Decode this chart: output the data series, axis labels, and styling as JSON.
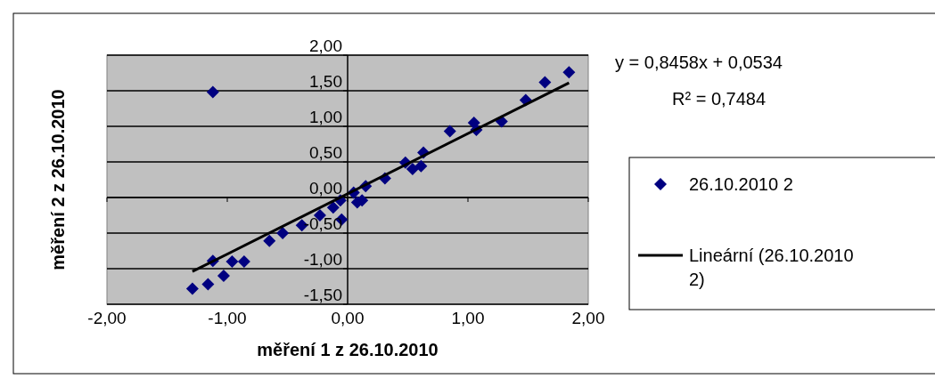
{
  "chart_data": {
    "type": "scatter",
    "xlabel": "měření 1 z 26.10.2010",
    "ylabel": "měření 2 z 26.10.2010",
    "annotations": [
      "y = 0,8458x + 0,0534",
      "R² = 0,7484"
    ],
    "xlim": [
      -2,
      2
    ],
    "ylim": [
      -1.5,
      2
    ],
    "xticks": [
      {
        "value": -2,
        "label": "-2,00"
      },
      {
        "value": -1,
        "label": "-1,00"
      },
      {
        "value": 0,
        "label": "0,00"
      },
      {
        "value": 1,
        "label": "1,00"
      },
      {
        "value": 2,
        "label": "2,00"
      }
    ],
    "yticks": [
      {
        "value": -1.5,
        "label": "-1,50"
      },
      {
        "value": -1,
        "label": "-1,00"
      },
      {
        "value": -0.5,
        "label": "-0,50"
      },
      {
        "value": 0,
        "label": "0,00"
      },
      {
        "value": 0.5,
        "label": "0,50"
      },
      {
        "value": 1,
        "label": "1,00"
      },
      {
        "value": 1.5,
        "label": "1,50"
      },
      {
        "value": 2,
        "label": "2,00"
      }
    ],
    "grid": "y",
    "legend": "right",
    "marker": "diamond",
    "series": [
      {
        "name": "26.10.2010 2",
        "color": "#000080",
        "x": [
          -1.12,
          -1.29,
          -1.16,
          -1.12,
          -1.03,
          -0.96,
          -0.86,
          -0.65,
          -0.54,
          -0.38,
          -0.23,
          -0.12,
          -0.05,
          -0.06,
          0.05,
          0.08,
          0.12,
          0.15,
          0.31,
          0.48,
          0.54,
          0.61,
          0.63,
          0.85,
          1.05,
          1.07,
          1.28,
          1.48,
          1.64,
          1.84
        ],
        "values": [
          1.48,
          -1.28,
          -1.22,
          -0.89,
          -1.1,
          -0.9,
          -0.9,
          -0.61,
          -0.5,
          -0.39,
          -0.25,
          -0.14,
          -0.31,
          -0.04,
          0.07,
          -0.07,
          -0.04,
          0.16,
          0.27,
          0.49,
          0.4,
          0.44,
          0.63,
          0.93,
          1.05,
          0.95,
          1.07,
          1.37,
          1.62,
          1.76
        ]
      },
      {
        "name": "Lineární (26.10.2010 2)",
        "type": "line",
        "color": "#000000",
        "line_style": "solid",
        "marker": "none",
        "x": [
          -1.29,
          1.84
        ],
        "values": [
          -1.04,
          1.61
        ]
      }
    ]
  }
}
